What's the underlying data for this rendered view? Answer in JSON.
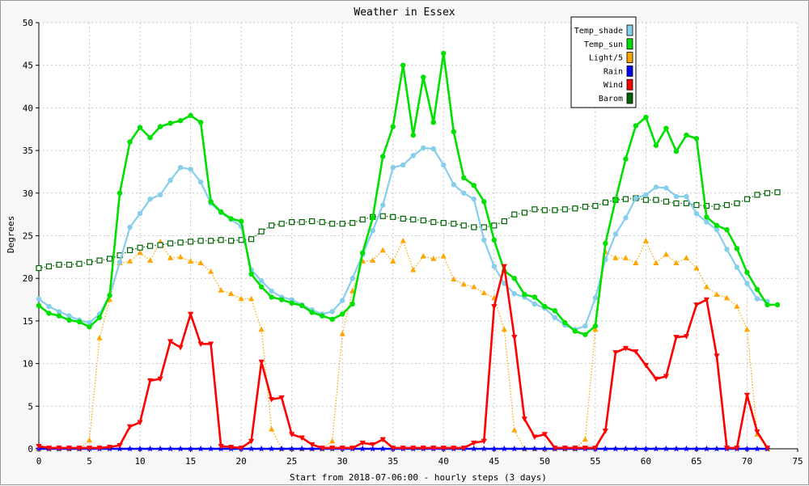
{
  "chart_data": {
    "type": "line",
    "title": "Weather in Essex",
    "xlabel": "Start from 2018-07-06:00 - hourly steps (3 days)",
    "ylabel": "Degrees",
    "xlim": [
      0,
      75
    ],
    "ylim": [
      0,
      50
    ],
    "xticks": [
      0,
      5,
      10,
      15,
      20,
      25,
      30,
      35,
      40,
      45,
      50,
      55,
      60,
      65,
      70,
      75
    ],
    "yticks": [
      0,
      5,
      10,
      15,
      20,
      25,
      30,
      35,
      40,
      45,
      50
    ],
    "grid": true,
    "legend_position": "top-right",
    "series": [
      {
        "name": "Temp_shade",
        "color": "#87ceeb",
        "marker": "circle",
        "line_style": "solid",
        "values": [
          17.6,
          16.7,
          16.1,
          15.6,
          15.1,
          14.8,
          15.8,
          18.0,
          21.9,
          26.0,
          27.6,
          29.3,
          29.8,
          31.5,
          33.0,
          32.8,
          31.3,
          28.8,
          27.7,
          26.9,
          26.1,
          21.0,
          19.7,
          18.5,
          17.8,
          17.5,
          16.9,
          16.3,
          15.8,
          16.1,
          17.4,
          20.0,
          22.8,
          25.6,
          28.6,
          33.0,
          33.3,
          34.4,
          35.3,
          35.2,
          33.3,
          31.0,
          30.0,
          29.3,
          24.5,
          21.4,
          19.4,
          18.2,
          17.8,
          17.0,
          16.5,
          15.4,
          14.5,
          14.0,
          14.4,
          17.7,
          22.2,
          25.2,
          27.1,
          29.4,
          29.8,
          30.7,
          30.6,
          29.6,
          29.6,
          27.6,
          26.6,
          25.7,
          23.4,
          21.3,
          19.4,
          17.6,
          17.3
        ]
      },
      {
        "name": "Temp_sun",
        "color": "#00e000",
        "marker": "circle",
        "line_style": "solid",
        "values": [
          16.8,
          15.9,
          15.6,
          15.1,
          14.9,
          14.3,
          15.4,
          18.0,
          30.0,
          36.0,
          37.7,
          36.5,
          37.8,
          38.2,
          38.5,
          39.1,
          38.3,
          29.0,
          27.8,
          27.0,
          26.7,
          20.5,
          19.0,
          17.8,
          17.5,
          17.1,
          16.8,
          16.0,
          15.6,
          15.2,
          15.8,
          17.0,
          23.0,
          27.1,
          34.3,
          37.8,
          45.0,
          36.8,
          43.6,
          38.3,
          46.4,
          37.2,
          31.8,
          30.9,
          29.0,
          24.5,
          20.9,
          20.0,
          18.1,
          17.8,
          16.7,
          16.2,
          14.8,
          13.8,
          13.4,
          14.4,
          24.1,
          29.2,
          34.0,
          37.9,
          38.9,
          35.6,
          37.6,
          34.9,
          36.8,
          36.4,
          27.2,
          26.2,
          25.7,
          23.5,
          20.7,
          18.7,
          16.9,
          16.9
        ]
      },
      {
        "name": "Light/5",
        "color": "#ffa500",
        "marker": "triangle-up",
        "line_style": "dotted",
        "values": [
          0,
          0,
          0,
          0,
          0,
          1.0,
          13.0,
          17.5,
          21.8,
          22.0,
          23.0,
          22.1,
          24.3,
          22.4,
          22.5,
          22.0,
          21.8,
          20.8,
          18.6,
          18.2,
          17.6,
          17.6,
          14.0,
          2.3,
          0,
          0,
          0,
          0,
          0,
          0.9,
          13.5,
          18.5,
          22.0,
          22.1,
          23.3,
          22.0,
          24.4,
          21.0,
          22.6,
          22.3,
          22.6,
          19.9,
          19.3,
          19.0,
          18.3,
          17.7,
          14.0,
          2.2,
          0,
          0,
          0,
          0,
          0,
          0,
          1.1,
          14.0,
          23.1,
          22.4,
          22.4,
          21.8,
          24.4,
          21.8,
          22.8,
          21.8,
          22.4,
          21.2,
          19.0,
          18.1,
          17.7,
          16.7,
          14.0,
          1.7,
          0
        ]
      },
      {
        "name": "Rain",
        "color": "#0000ff",
        "marker": "star",
        "line_style": "solid",
        "values": [
          0,
          0,
          0,
          0,
          0,
          0,
          0,
          0,
          0,
          0,
          0,
          0,
          0,
          0,
          0,
          0,
          0,
          0,
          0,
          0,
          0,
          0,
          0,
          0,
          0,
          0,
          0,
          0,
          0,
          0,
          0,
          0,
          0,
          0,
          0,
          0,
          0,
          0,
          0,
          0,
          0,
          0,
          0,
          0,
          0,
          0,
          0,
          0,
          0,
          0,
          0,
          0,
          0,
          0,
          0,
          0,
          0,
          0,
          0,
          0,
          0,
          0,
          0,
          0,
          0,
          0,
          0,
          0,
          0,
          0,
          0,
          0,
          0
        ]
      },
      {
        "name": "Wind",
        "color": "#ff0000",
        "marker": "triangle-down",
        "line_style": "solid",
        "values": [
          0.3,
          0.1,
          0.1,
          0.1,
          0.1,
          0.1,
          0.1,
          0.2,
          0.4,
          2.6,
          3.1,
          8.0,
          8.2,
          12.6,
          11.9,
          15.8,
          12.3,
          12.3,
          0.3,
          0.2,
          0.1,
          0.9,
          10.2,
          5.8,
          6.0,
          1.7,
          1.3,
          0.5,
          0.1,
          0.1,
          0.1,
          0.1,
          0.7,
          0.5,
          1.1,
          0.1,
          0.1,
          0.1,
          0.1,
          0.1,
          0.1,
          0.1,
          0.1,
          0.7,
          0.9,
          16.7,
          21.4,
          13.1,
          3.5,
          1.4,
          1.7,
          0.1,
          0.1,
          0.1,
          0.1,
          0.1,
          2.1,
          11.3,
          11.8,
          11.4,
          9.8,
          8.2,
          8.5,
          13.1,
          13.2,
          16.9,
          17.5,
          10.9,
          0.1,
          0.1,
          6.3,
          2.0,
          0.1
        ]
      },
      {
        "name": "Barom",
        "color": "#006400",
        "marker": "square-open",
        "line_style": "dotted",
        "values": [
          21.2,
          21.4,
          21.6,
          21.6,
          21.7,
          21.9,
          22.1,
          22.3,
          22.7,
          23.3,
          23.6,
          23.8,
          23.9,
          24.1,
          24.2,
          24.3,
          24.4,
          24.4,
          24.5,
          24.4,
          24.5,
          24.6,
          25.5,
          26.2,
          26.4,
          26.6,
          26.6,
          26.7,
          26.6,
          26.4,
          26.4,
          26.5,
          26.9,
          27.2,
          27.3,
          27.2,
          27.0,
          26.9,
          26.8,
          26.6,
          26.5,
          26.4,
          26.2,
          26.0,
          26.0,
          26.2,
          26.7,
          27.5,
          27.7,
          28.1,
          28.0,
          28.0,
          28.1,
          28.2,
          28.4,
          28.5,
          28.9,
          29.2,
          29.3,
          29.4,
          29.2,
          29.2,
          29.0,
          28.8,
          28.8,
          28.6,
          28.5,
          28.4,
          28.6,
          28.8,
          29.3,
          29.8,
          30.0,
          30.1
        ]
      }
    ]
  }
}
